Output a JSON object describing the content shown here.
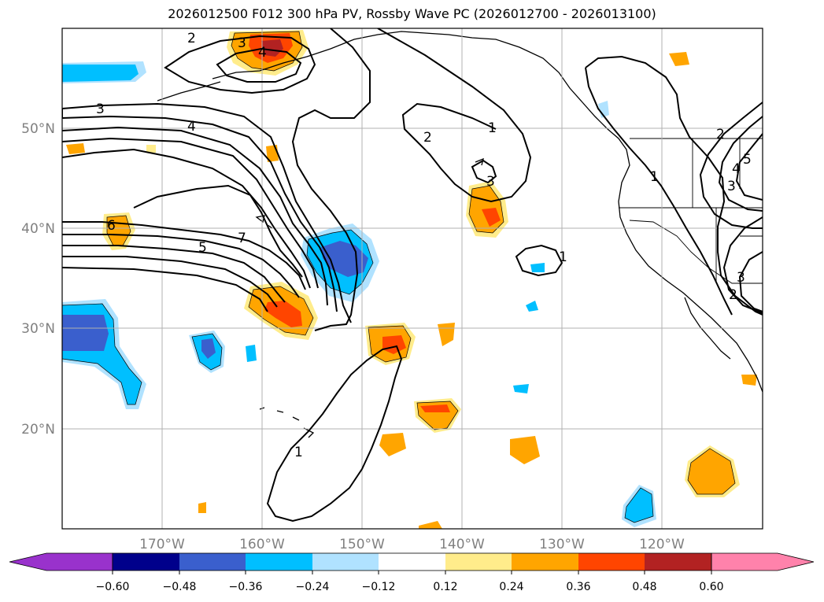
{
  "title": "2026012500 F012 300 hPa PV, Rossby Wave PC (2026012700 - 2026013100)",
  "map": {
    "lon_range": [
      -180,
      -110
    ],
    "lat_range": [
      10,
      60
    ],
    "lon_ticks": [
      {
        "value": -170,
        "label": "170°W"
      },
      {
        "value": -160,
        "label": "160°W"
      },
      {
        "value": -150,
        "label": "150°W"
      },
      {
        "value": -140,
        "label": "140°W"
      },
      {
        "value": -130,
        "label": "130°W"
      },
      {
        "value": -120,
        "label": "120°W"
      }
    ],
    "lat_ticks": [
      {
        "value": 20,
        "label": "20°N"
      },
      {
        "value": 30,
        "label": "30°N"
      },
      {
        "value": 40,
        "label": "40°N"
      },
      {
        "value": 50,
        "label": "50°N"
      }
    ],
    "contour_labels": [
      "2",
      "3",
      "4",
      "3",
      "4",
      "6",
      "7",
      "5",
      "2",
      "1",
      "3",
      "1",
      "1",
      "1",
      "2",
      "4",
      "5",
      "3",
      "3",
      "2"
    ]
  },
  "colorbar": {
    "ticks": [
      "−0.60",
      "−0.48",
      "−0.36",
      "−0.24",
      "−0.12",
      "0.12",
      "0.24",
      "0.36",
      "0.48",
      "0.60"
    ],
    "colors": [
      "#9932cc",
      "#00008b",
      "#3a5fcd",
      "#00bfff",
      "#b0e2ff",
      "#ffffff",
      "#ffec8b",
      "#ffa500",
      "#ff4500",
      "#b22222",
      "#ff82ab"
    ]
  },
  "fill_colors": {
    "orange": "#ffa500",
    "light_orange": "#ffec8b",
    "red": "#ff4500",
    "dark_red": "#b22222",
    "sky": "#00bfff",
    "light_sky": "#b0e2ff",
    "royal": "#3a5fcd"
  }
}
